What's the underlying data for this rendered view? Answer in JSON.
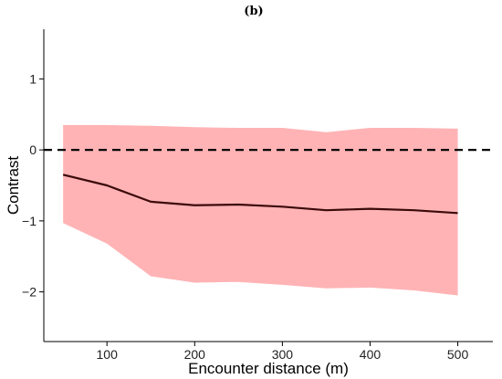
{
  "chart_data": {
    "type": "line",
    "panel_label": "(b)",
    "xlabel": "Encounter distance (m)",
    "ylabel": "Contrast",
    "xlim": [
      28,
      540
    ],
    "ylim": [
      -2.7,
      1.7
    ],
    "x_ticks": [
      100,
      200,
      300,
      400,
      500
    ],
    "y_ticks": [
      -2,
      -1,
      0,
      1
    ],
    "grid": false,
    "reference_line": {
      "y": 0,
      "style": "dashed",
      "color": "#000000"
    },
    "series": [
      {
        "x": [
          50,
          100,
          150,
          200,
          250,
          300,
          350,
          400,
          450,
          500
        ],
        "y": [
          -0.35,
          -0.5,
          -0.73,
          -0.78,
          -0.77,
          -0.8,
          -0.85,
          -0.83,
          -0.85,
          -0.89
        ],
        "upper": [
          0.35,
          0.35,
          0.34,
          0.32,
          0.31,
          0.31,
          0.25,
          0.31,
          0.31,
          0.3
        ],
        "lower": [
          -1.03,
          -1.32,
          -1.78,
          -1.87,
          -1.86,
          -1.9,
          -1.95,
          -1.94,
          -1.98,
          -2.05
        ],
        "line_color": "#3b0a0a",
        "band_color": "#ffb3b5"
      }
    ]
  }
}
